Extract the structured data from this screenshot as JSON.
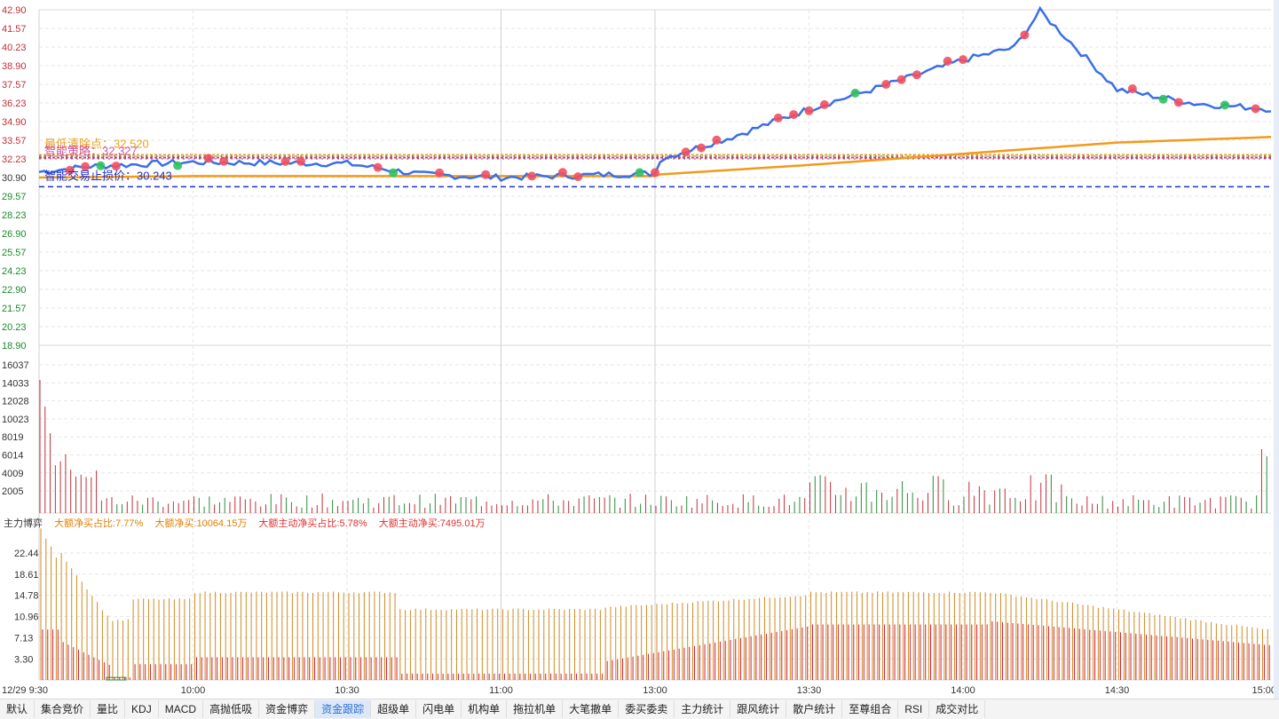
{
  "price_axis_labels": [
    "42.90",
    "41.57",
    "40.23",
    "38.90",
    "37.57",
    "36.23",
    "34.90",
    "33.57",
    "32.23",
    "30.90",
    "29.57",
    "28.23",
    "26.90",
    "25.57",
    "24.23",
    "22.90",
    "21.57",
    "20.23",
    "18.90"
  ],
  "price_axis_colors": {
    "up": "#e02020",
    "flat": "#333333",
    "down": "#1a8a2a"
  },
  "volume_axis_labels": [
    "16037",
    "14033",
    "12028",
    "10023",
    "8019",
    "6014",
    "4009",
    "2005"
  ],
  "flow_axis_labels": [
    "22.44",
    "18.61",
    "14.78",
    "10.96",
    "7.13",
    "3.30"
  ],
  "time_labels": [
    "12/29 9:30",
    "10:00",
    "10:30",
    "11:00",
    "13:00",
    "13:30",
    "14:00",
    "14:30",
    "15:00"
  ],
  "overlay_text": {
    "line1": "最低清除点：32.520",
    "line2": "智能策略：32.327",
    "line3": "智能交易止损价：30.243"
  },
  "panel_title": "主力博弈",
  "flow_stats": [
    {
      "label": "大额净买占比:",
      "value": "7.77%",
      "color": "#e08000"
    },
    {
      "label": "大额净买:",
      "value": "10064.15万",
      "color": "#e08000"
    },
    {
      "label": "大额主动净买占比:",
      "value": "5.78%",
      "color": "#e03030"
    },
    {
      "label": "大额主动净买:",
      "value": "7495.01万",
      "color": "#e03030"
    }
  ],
  "tabs": [
    "默认",
    "集合竞价",
    "量比",
    "KDJ",
    "MACD",
    "高抛低吸",
    "资金博弈",
    "资金跟踪",
    "超级单",
    "闪电单",
    "机构单",
    "拖拉机单",
    "大笔撤单",
    "委买委卖",
    "主力统计",
    "跟风统计",
    "散户统计",
    "至尊组合",
    "RSI",
    "成交对比"
  ],
  "active_tab": "资金跟踪",
  "colors": {
    "price_line": "#3a6fe8",
    "avg_line": "#f29a1a",
    "stop_line": "#2030c8",
    "buy_dot": "#f05060",
    "sell_dot": "#30c060",
    "vol_up": "#c0303a",
    "vol_down": "#2a8a3a",
    "flow_orange": "#d08a20",
    "flow_red": "#d02030"
  },
  "chart_data": {
    "type": "line",
    "x_range": [
      "9:30",
      "15:00"
    ],
    "price_range": [
      18.9,
      42.9
    ],
    "price_series_key_points": [
      {
        "t": "9:30",
        "v": 31.3
      },
      {
        "t": "9:40",
        "v": 31.7
      },
      {
        "t": "10:00",
        "v": 32.0
      },
      {
        "t": "10:30",
        "v": 31.9
      },
      {
        "t": "10:45",
        "v": 31.1
      },
      {
        "t": "11:00",
        "v": 30.9
      },
      {
        "t": "11:30",
        "v": 31.2
      },
      {
        "t": "13:00",
        "v": 32.1
      },
      {
        "t": "13:15",
        "v": 33.8
      },
      {
        "t": "13:30",
        "v": 35.8
      },
      {
        "t": "13:45",
        "v": 37.5
      },
      {
        "t": "14:00",
        "v": 39.3
      },
      {
        "t": "14:10",
        "v": 40.2
      },
      {
        "t": "14:15",
        "v": 42.8
      },
      {
        "t": "14:30",
        "v": 37.2
      },
      {
        "t": "14:45",
        "v": 36.2
      },
      {
        "t": "15:00",
        "v": 35.8
      }
    ],
    "avg_line_key_points": [
      {
        "t": "9:30",
        "v": 30.9
      },
      {
        "t": "10:00",
        "v": 31.0
      },
      {
        "t": "11:30",
        "v": 31.0
      },
      {
        "t": "13:00",
        "v": 31.1
      },
      {
        "t": "13:30",
        "v": 31.8
      },
      {
        "t": "14:00",
        "v": 32.6
      },
      {
        "t": "14:30",
        "v": 33.4
      },
      {
        "t": "15:00",
        "v": 33.8
      }
    ],
    "reference_lines": [
      {
        "name": "最低清除点",
        "value": 32.52
      },
      {
        "name": "智能策略",
        "value": 32.327
      },
      {
        "name": "智能交易止损价",
        "value": 30.243
      }
    ]
  }
}
